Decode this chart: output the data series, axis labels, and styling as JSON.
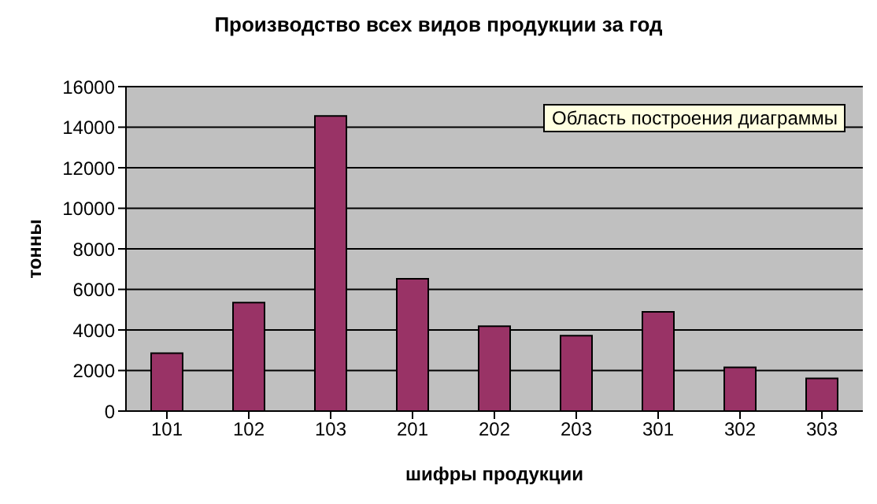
{
  "chart_data": {
    "type": "bar",
    "title": "Производство всех видов продукции за год",
    "xlabel": "шифры продукции",
    "ylabel": "тонны",
    "categories": [
      "101",
      "102",
      "103",
      "201",
      "202",
      "203",
      "301",
      "302",
      "303"
    ],
    "values": [
      2850,
      5350,
      14550,
      6520,
      4180,
      3720,
      4890,
      2160,
      1610
    ],
    "color": "#993366",
    "ylim": [
      0,
      16000
    ],
    "yticks": [
      0,
      2000,
      4000,
      6000,
      8000,
      10000,
      12000,
      14000,
      16000
    ],
    "grid": "y",
    "annotations": [
      "Область построения диаграммы"
    ]
  }
}
